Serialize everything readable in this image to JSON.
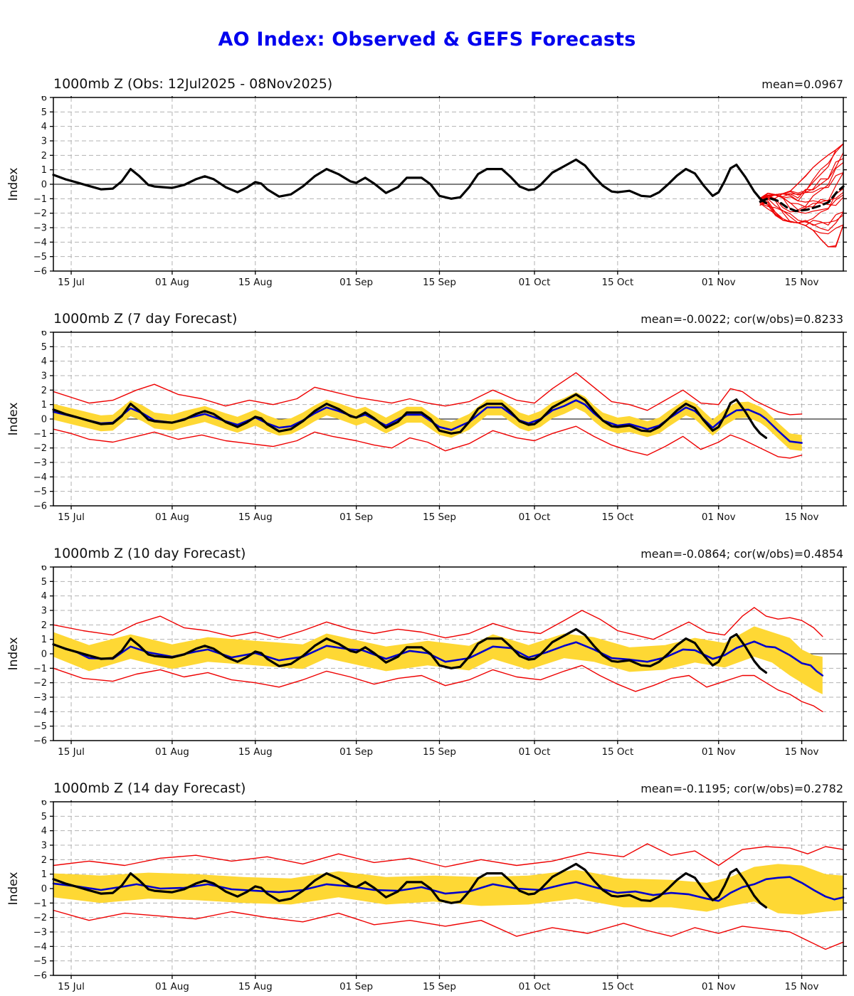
{
  "title": {
    "text": "AO Index: Observed & GEFS Forecasts",
    "color": "#0000ee"
  },
  "colors": {
    "observed": "#000000",
    "forecast_mean": "#0000cc",
    "spread_band": "#fed834",
    "envelope": "#ee0000",
    "ensemble_member": "#ee0000",
    "grid": "#b3b3b3",
    "zero_line": "#333333",
    "axis": "#000000",
    "text": "#111111"
  },
  "chart_data": {
    "type": "line",
    "title": "AO Index: Observed & GEFS Forecasts",
    "ylabel": "Index",
    "ylim": [
      -6,
      6
    ],
    "yticks": [
      6,
      5,
      4,
      3,
      2,
      1,
      0,
      -1,
      -2,
      -3,
      -4,
      -5,
      -6
    ],
    "x_unit": "days since 12 Jul 2025",
    "x_max": 133,
    "grid": "dashed",
    "xticks": [
      {
        "day": 3,
        "label": "15 Jul"
      },
      {
        "day": 20,
        "label": "01 Aug"
      },
      {
        "day": 34,
        "label": "15 Aug"
      },
      {
        "day": 51,
        "label": "01 Sep"
      },
      {
        "day": 65,
        "label": "15 Sep"
      },
      {
        "day": 81,
        "label": "01 Oct"
      },
      {
        "day": 95,
        "label": "15 Oct"
      },
      {
        "day": 112,
        "label": "01 Nov"
      },
      {
        "day": 126,
        "label": "15 Nov"
      }
    ],
    "observed": {
      "name": "Observed AO index (black)",
      "x": [
        0,
        2,
        4,
        6,
        8,
        10,
        11.5,
        13,
        14.5,
        16,
        17,
        19,
        20,
        22,
        24,
        25.5,
        27,
        29,
        31,
        32.5,
        34,
        35,
        36,
        38,
        40,
        42,
        44,
        46,
        48,
        50,
        51,
        52.5,
        54,
        56,
        58,
        59.5,
        62,
        63.5,
        65,
        67,
        68.5,
        70,
        71.5,
        73,
        75.5,
        77,
        78.5,
        80,
        81,
        82,
        84,
        86,
        88,
        89.5,
        91,
        92.5,
        94,
        95,
        97,
        99,
        100.5,
        102,
        103.5,
        105,
        106.5,
        108,
        109.5,
        111,
        112,
        113,
        114,
        115,
        116.5,
        118,
        119,
        120
      ],
      "y": [
        0.65,
        0.35,
        0.12,
        -0.12,
        -0.35,
        -0.3,
        0.2,
        1.05,
        0.55,
        -0.05,
        -0.15,
        -0.22,
        -0.25,
        -0.05,
        0.35,
        0.55,
        0.35,
        -0.2,
        -0.55,
        -0.25,
        0.15,
        0.05,
        -0.35,
        -0.85,
        -0.7,
        -0.15,
        0.55,
        1.05,
        0.7,
        0.2,
        0.1,
        0.45,
        0.05,
        -0.6,
        -0.2,
        0.45,
        0.45,
        0,
        -0.8,
        -1.0,
        -0.9,
        -0.2,
        0.7,
        1.05,
        1.05,
        0.5,
        -0.15,
        -0.4,
        -0.35,
        -0.05,
        0.8,
        1.25,
        1.7,
        1.3,
        0.55,
        -0.1,
        -0.5,
        -0.55,
        -0.45,
        -0.8,
        -0.85,
        -0.55,
        0,
        0.6,
        1.05,
        0.75,
        -0.1,
        -0.8,
        -0.55,
        0.2,
        1.1,
        1.35,
        0.5,
        -0.5,
        -1.0,
        -1.3
      ]
    },
    "panels": [
      {
        "id": "obs",
        "title": "1000mb Z (Obs: 12Jul2025 - 08Nov2025)",
        "stats": "mean=0.0967",
        "members": 20,
        "ens_mean": {
          "name": "GEFS ensemble mean (black dashed)",
          "x": [
            119,
            120.5,
            122,
            123.5,
            125,
            127,
            129,
            130.5,
            132,
            133
          ],
          "y": [
            -1.2,
            -0.95,
            -1.15,
            -1.6,
            -1.85,
            -1.75,
            -1.5,
            -1.25,
            -0.5,
            -0.15
          ]
        },
        "ens_envelope": {
          "x": [
            118,
            120,
            122,
            124,
            126,
            128,
            130,
            131.5,
            133
          ],
          "top": [
            -0.9,
            -0.6,
            -0.75,
            -0.5,
            0.3,
            1.2,
            1.9,
            2.3,
            2.8
          ],
          "bottom": [
            -1.5,
            -1.9,
            -2.4,
            -2.6,
            -2.7,
            -3.2,
            -4.2,
            -4.6,
            -2.8
          ]
        }
      },
      {
        "id": "f7",
        "title": "1000mb Z (7 day Forecast)",
        "stats": "mean=-0.0022; cor(w/obs)=0.8233",
        "mean": {
          "name": "7-day forecast ensemble mean (blue)",
          "x": [
            0,
            2,
            4,
            6,
            8,
            10,
            13,
            15,
            17,
            20,
            22,
            25.5,
            29,
            31,
            34,
            36,
            38,
            40,
            42,
            44,
            46,
            48,
            51,
            52.5,
            56,
            59.5,
            62,
            65,
            67,
            70,
            73,
            75.5,
            78.5,
            80,
            82,
            84,
            86,
            88,
            89.5,
            91,
            92.5,
            95,
            97,
            100,
            102,
            103.5,
            106.5,
            108,
            111,
            113,
            115,
            117,
            119,
            120,
            122,
            124,
            126
          ],
          "y": [
            0.5,
            0.3,
            0.1,
            -0.1,
            -0.3,
            -0.25,
            0.75,
            0.4,
            -0.1,
            -0.25,
            0,
            0.35,
            -0.15,
            -0.4,
            0.1,
            -0.3,
            -0.6,
            -0.5,
            -0.1,
            0.4,
            0.8,
            0.55,
            0.1,
            0.3,
            -0.45,
            0.3,
            0.3,
            -0.55,
            -0.75,
            -0.2,
            0.8,
            0.8,
            -0.1,
            -0.3,
            0,
            0.6,
            0.9,
            1.3,
            1.0,
            0.4,
            -0.1,
            -0.45,
            -0.35,
            -0.7,
            -0.45,
            0,
            0.8,
            0.55,
            -0.6,
            0.1,
            0.6,
            0.65,
            0.3,
            0,
            -0.8,
            -1.55,
            -1.65
          ]
        },
        "band_halfwidth": 0.55,
        "envelope": {
          "name": "ensemble min/max (red)",
          "x": [
            0,
            3,
            6,
            10,
            14,
            17,
            21,
            25,
            29,
            33,
            37,
            41,
            44,
            47,
            51,
            54,
            57,
            60,
            63,
            66,
            70,
            74,
            78,
            81,
            84,
            88,
            91,
            94,
            97,
            100,
            103,
            106,
            109,
            112,
            114,
            116,
            118,
            120,
            122,
            124,
            126
          ],
          "top": [
            1.9,
            1.5,
            1.1,
            1.3,
            2.0,
            2.4,
            1.7,
            1.4,
            0.9,
            1.3,
            1.0,
            1.4,
            2.2,
            1.9,
            1.5,
            1.3,
            1.1,
            1.4,
            1.1,
            0.9,
            1.2,
            2.0,
            1.3,
            1.1,
            2.1,
            3.2,
            2.2,
            1.2,
            1.0,
            0.6,
            1.3,
            2.0,
            1.1,
            1.0,
            2.1,
            1.9,
            1.3,
            0.9,
            0.5,
            0.3,
            0.35
          ],
          "bottom": [
            -0.7,
            -1.0,
            -1.4,
            -1.6,
            -1.2,
            -0.9,
            -1.4,
            -1.1,
            -1.5,
            -1.7,
            -1.9,
            -1.5,
            -0.9,
            -1.2,
            -1.5,
            -1.8,
            -2.0,
            -1.3,
            -1.6,
            -2.2,
            -1.7,
            -0.8,
            -1.3,
            -1.5,
            -1.0,
            -0.5,
            -1.2,
            -1.8,
            -2.2,
            -2.5,
            -1.9,
            -1.2,
            -2.1,
            -1.6,
            -1.1,
            -1.4,
            -1.8,
            -2.2,
            -2.6,
            -2.7,
            -2.5
          ]
        }
      },
      {
        "id": "f10",
        "title": "1000mb Z (10 day Forecast)",
        "stats": "mean=-0.0864; cor(w/obs)=0.4854",
        "mean": {
          "name": "10-day forecast ensemble mean (blue)",
          "x": [
            0,
            4,
            6,
            10,
            13,
            16,
            20,
            24,
            26,
            30,
            34,
            38,
            42,
            46,
            50,
            52,
            56,
            60,
            63,
            66,
            70,
            74,
            77,
            80,
            83,
            86,
            88,
            91,
            94,
            97,
            100,
            103,
            106,
            108,
            111,
            113,
            115,
            118,
            120,
            121.5,
            124,
            126,
            127.5,
            128.5,
            129.5
          ],
          "y": [
            0.65,
            0.1,
            -0.3,
            -0.35,
            0.5,
            0.1,
            -0.2,
            0.15,
            0.3,
            -0.25,
            0.05,
            -0.45,
            -0.2,
            0.55,
            0.3,
            0.25,
            -0.35,
            0.2,
            0.05,
            -0.55,
            -0.3,
            0.5,
            0.4,
            -0.25,
            0.1,
            0.55,
            0.8,
            0.3,
            -0.3,
            -0.4,
            -0.55,
            -0.25,
            0.3,
            0.25,
            -0.35,
            -0.1,
            0.4,
            0.85,
            0.5,
            0.45,
            -0.1,
            -0.65,
            -0.8,
            -1.2,
            -1.5
          ]
        },
        "band": {
          "x": [
            0,
            6,
            13,
            20,
            26,
            34,
            42,
            46,
            56,
            63,
            70,
            74,
            80,
            86,
            91,
            97,
            103,
            108,
            113,
            118,
            121,
            124,
            126,
            128,
            129.5
          ],
          "top": [
            1.5,
            0.6,
            1.35,
            0.65,
            1.15,
            0.9,
            0.65,
            1.4,
            0.5,
            0.9,
            0.55,
            1.35,
            0.6,
            1.4,
            1.15,
            0.45,
            0.6,
            1.1,
            0.75,
            1.9,
            1.5,
            1.1,
            0.3,
            -0.1,
            -0.2
          ],
          "bottom": [
            -0.2,
            -1.2,
            -0.35,
            -1.05,
            -0.55,
            -0.8,
            -1.05,
            -0.3,
            -1.2,
            -0.8,
            -1.15,
            -0.35,
            -1.1,
            -0.3,
            -0.55,
            -1.25,
            -1.1,
            -0.6,
            -0.95,
            -0.2,
            -0.6,
            -1.5,
            -2.0,
            -2.5,
            -2.8
          ]
        },
        "envelope": {
          "name": "ensemble min/max (red)",
          "x": [
            0,
            5,
            10,
            14,
            18,
            22,
            26,
            30,
            34,
            38,
            42,
            46,
            50,
            54,
            58,
            62,
            66,
            70,
            74,
            78,
            82,
            86,
            89,
            92,
            95,
            98,
            101,
            104,
            107,
            110,
            113,
            116,
            118,
            120,
            122,
            124,
            126,
            128,
            129.5
          ],
          "top": [
            2.0,
            1.6,
            1.3,
            2.1,
            2.6,
            1.8,
            1.6,
            1.2,
            1.5,
            1.1,
            1.6,
            2.2,
            1.7,
            1.4,
            1.7,
            1.5,
            1.1,
            1.4,
            2.1,
            1.6,
            1.4,
            2.3,
            3.0,
            2.4,
            1.6,
            1.3,
            1.0,
            1.6,
            2.2,
            1.5,
            1.3,
            2.6,
            3.2,
            2.6,
            2.4,
            2.5,
            2.3,
            1.8,
            1.2
          ],
          "bottom": [
            -1.0,
            -1.7,
            -1.9,
            -1.4,
            -1.1,
            -1.6,
            -1.3,
            -1.8,
            -2.0,
            -2.3,
            -1.8,
            -1.2,
            -1.6,
            -2.1,
            -1.7,
            -1.5,
            -2.2,
            -1.8,
            -1.1,
            -1.6,
            -1.8,
            -1.2,
            -0.8,
            -1.5,
            -2.1,
            -2.6,
            -2.2,
            -1.7,
            -1.5,
            -2.3,
            -1.9,
            -1.5,
            -1.5,
            -2.0,
            -2.5,
            -2.8,
            -3.3,
            -3.6,
            -4.0
          ]
        }
      },
      {
        "id": "f14",
        "title": "1000mb Z (14 day Forecast)",
        "stats": "mean=-0.1195; cor(w/obs)=0.2782",
        "mean": {
          "name": "14-day forecast ensemble mean (blue)",
          "x": [
            0,
            4,
            8,
            12,
            14,
            18,
            22,
            26,
            30,
            34,
            38,
            42,
            46,
            50,
            54,
            58,
            62,
            66,
            70,
            74,
            78,
            82,
            86,
            88,
            92,
            95,
            98,
            101,
            104,
            107,
            110,
            112,
            114,
            116,
            118,
            120,
            122,
            124,
            126,
            128,
            130,
            131.5,
            133
          ],
          "y": [
            0.35,
            0.15,
            -0.1,
            0.15,
            0.3,
            0,
            0.05,
            0.3,
            -0.05,
            -0.15,
            -0.25,
            -0.1,
            0.3,
            0.15,
            -0.1,
            -0.15,
            0.1,
            -0.35,
            -0.2,
            0.3,
            0,
            -0.1,
            0.3,
            0.45,
            0,
            -0.3,
            -0.2,
            -0.45,
            -0.3,
            -0.4,
            -0.7,
            -0.85,
            -0.3,
            0.1,
            0.3,
            0.65,
            0.75,
            0.8,
            0.4,
            -0.1,
            -0.55,
            -0.75,
            -0.6
          ]
        },
        "band": {
          "x": [
            0,
            8,
            16,
            24,
            32,
            40,
            48,
            56,
            64,
            72,
            80,
            88,
            96,
            104,
            110,
            114,
            118,
            122,
            126,
            130,
            133
          ],
          "top": [
            1.05,
            0.9,
            1.1,
            1.0,
            0.8,
            0.7,
            1.2,
            0.8,
            0.9,
            0.8,
            0.9,
            1.3,
            0.7,
            0.6,
            0.4,
            0.8,
            1.5,
            1.7,
            1.6,
            1.0,
            0.9
          ],
          "bottom": [
            -0.6,
            -1.0,
            -0.7,
            -0.8,
            -1.0,
            -1.1,
            -0.6,
            -1.1,
            -0.9,
            -1.2,
            -1.1,
            -0.7,
            -1.3,
            -1.3,
            -1.6,
            -1.2,
            -0.9,
            -1.7,
            -1.8,
            -1.6,
            -1.5
          ]
        },
        "envelope": {
          "name": "ensemble min/max (red)",
          "x": [
            0,
            6,
            12,
            18,
            24,
            30,
            36,
            42,
            48,
            54,
            60,
            66,
            72,
            78,
            84,
            90,
            96,
            100,
            104,
            108,
            112,
            116,
            120,
            124,
            127,
            130,
            133
          ],
          "top": [
            1.6,
            1.9,
            1.6,
            2.1,
            2.3,
            1.9,
            2.2,
            1.7,
            2.4,
            1.8,
            2.1,
            1.5,
            2.0,
            1.6,
            1.9,
            2.5,
            2.2,
            3.1,
            2.3,
            2.6,
            1.6,
            2.7,
            2.9,
            2.8,
            2.4,
            2.9,
            2.7
          ],
          "bottom": [
            -1.5,
            -2.2,
            -1.7,
            -1.9,
            -2.1,
            -1.6,
            -2.0,
            -2.3,
            -1.7,
            -2.5,
            -2.2,
            -2.6,
            -2.2,
            -3.3,
            -2.7,
            -3.1,
            -2.4,
            -2.9,
            -3.3,
            -2.7,
            -3.1,
            -2.6,
            -2.8,
            -3.0,
            -3.6,
            -4.2,
            -3.7
          ]
        }
      }
    ]
  }
}
